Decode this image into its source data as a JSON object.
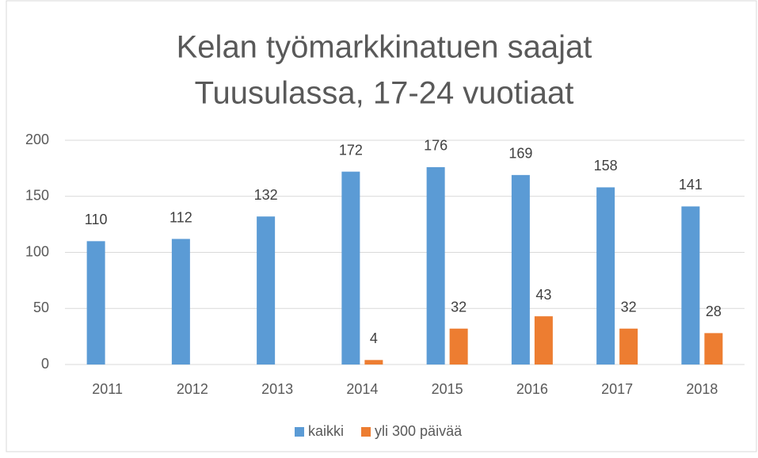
{
  "chart_data": {
    "type": "bar",
    "title": [
      "Kelan työmarkkinatuen saajat",
      "Tuusulassa, 17-24 vuotiaat"
    ],
    "categories": [
      "2011",
      "2012",
      "2013",
      "2014",
      "2015",
      "2016",
      "2017",
      "2018"
    ],
    "series": [
      {
        "name": "kaikki",
        "color": "#5b9bd5",
        "values": [
          110,
          112,
          132,
          172,
          176,
          169,
          158,
          141
        ]
      },
      {
        "name": "yli 300 päivää",
        "color": "#ed7d31",
        "values": [
          null,
          null,
          null,
          4,
          32,
          43,
          32,
          28
        ]
      }
    ],
    "ylim": [
      0,
      200
    ],
    "yticks": [
      0,
      50,
      100,
      150,
      200
    ],
    "grid": true,
    "legend": "bottom"
  }
}
